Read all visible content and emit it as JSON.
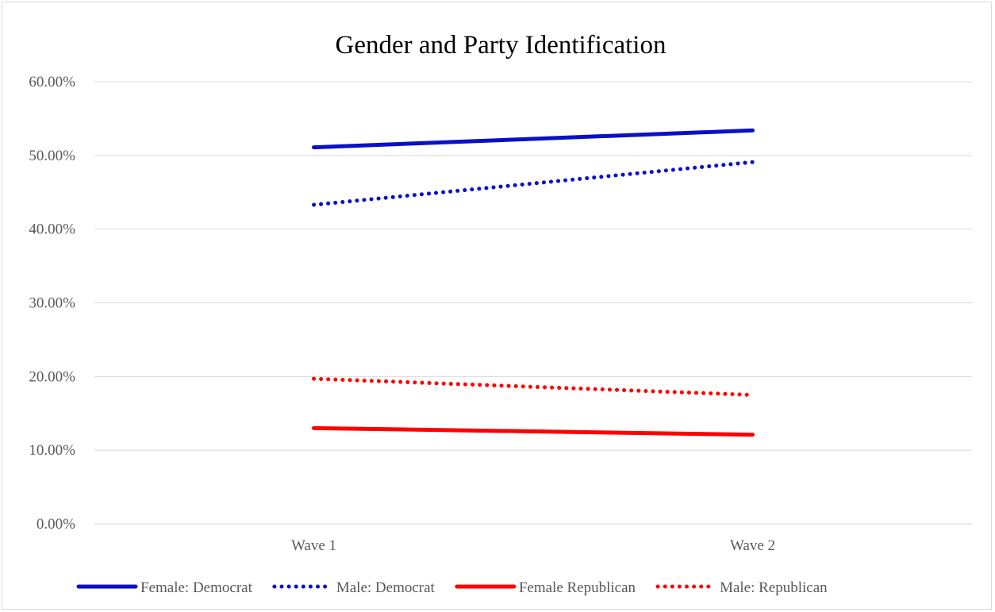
{
  "chart_data": {
    "type": "line",
    "title": "Gender and Party Identification",
    "xlabel": "",
    "ylabel": "",
    "categories": [
      "Wave 1",
      "Wave 2"
    ],
    "ylim": [
      0,
      0.6
    ],
    "y_ticks": [
      0,
      0.1,
      0.2,
      0.3,
      0.4,
      0.5,
      0.6
    ],
    "y_tick_labels": [
      "0.00%",
      "10.00%",
      "20.00%",
      "30.00%",
      "40.00%",
      "50.00%",
      "60.00%"
    ],
    "grid": true,
    "legend_position": "bottom",
    "series": [
      {
        "name": "Female: Democrat",
        "values": [
          0.511,
          0.534
        ],
        "color": "#0a10c8",
        "style": "solid"
      },
      {
        "name": "Male: Democrat",
        "values": [
          0.433,
          0.491
        ],
        "color": "#0a10c8",
        "style": "dotted"
      },
      {
        "name": "Female Republican",
        "values": [
          0.13,
          0.121
        ],
        "color": "#ff0000",
        "style": "solid"
      },
      {
        "name": "Male: Republican",
        "values": [
          0.197,
          0.175
        ],
        "color": "#ff0000",
        "style": "dotted"
      }
    ]
  }
}
